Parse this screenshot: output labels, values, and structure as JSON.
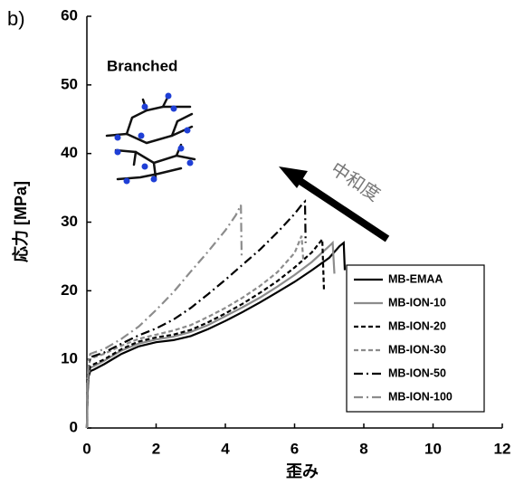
{
  "chart_data": {
    "type": "line",
    "panel_label": "b)",
    "annotation": "Branched",
    "arrow_label": "中和度",
    "xlabel": "歪み",
    "ylabel": "応力 [MPa]",
    "xlim": [
      0,
      12
    ],
    "xticks": [
      0,
      2,
      4,
      6,
      8,
      10,
      12
    ],
    "ylim": [
      0,
      60
    ],
    "yticks": [
      0,
      10,
      20,
      30,
      40,
      50,
      60
    ],
    "grid": false,
    "legend": "lower right",
    "series": [
      {
        "name": "MB-EMAA",
        "color": "#000000",
        "dash": "solid",
        "x": [
          0,
          0.02,
          0.05,
          0.1,
          0.2,
          0.5,
          1,
          1.5,
          2,
          2.5,
          3,
          3.5,
          4,
          4.5,
          5,
          5.5,
          6,
          6.5,
          7,
          7.3,
          7.42,
          7.45
        ],
        "values": [
          0,
          5,
          7.5,
          8.3,
          8.5,
          9.3,
          10.8,
          11.9,
          12.5,
          12.8,
          13.4,
          14.4,
          15.6,
          16.9,
          18.3,
          19.8,
          21.3,
          23,
          24.8,
          26.5,
          27,
          23
        ]
      },
      {
        "name": "MB-ION-10",
        "color": "#8c8c8c",
        "dash": "solid",
        "x": [
          0,
          0.02,
          0.05,
          0.1,
          0.2,
          0.5,
          1,
          1.5,
          2,
          2.5,
          3,
          3.5,
          4,
          4.5,
          5,
          5.5,
          6,
          6.5,
          7,
          7.1,
          7.15
        ],
        "values": [
          0,
          5.5,
          8,
          8.8,
          9,
          9.8,
          11.3,
          12.3,
          12.9,
          13.3,
          14,
          15,
          16.3,
          17.6,
          19,
          20.6,
          22.3,
          24.2,
          26.5,
          27,
          22.5
        ]
      },
      {
        "name": "MB-ION-20",
        "color": "#000000",
        "dash": "dashed",
        "x": [
          0,
          0.02,
          0.05,
          0.1,
          0.2,
          0.5,
          1,
          1.5,
          2,
          2.5,
          3,
          3.5,
          4,
          4.5,
          5,
          5.5,
          6,
          6.5,
          6.8,
          6.85
        ],
        "values": [
          0,
          5.5,
          8,
          9,
          9.3,
          10,
          11.5,
          12.6,
          13.2,
          13.6,
          14.3,
          15.4,
          16.7,
          18.1,
          19.7,
          21.4,
          23.4,
          25.6,
          27.5,
          20
        ]
      },
      {
        "name": "MB-ION-30",
        "color": "#8c8c8c",
        "dash": "dashed",
        "x": [
          0,
          0.02,
          0.05,
          0.1,
          0.2,
          0.5,
          1,
          1.5,
          2,
          2.5,
          3,
          3.5,
          4,
          4.5,
          5,
          5.5,
          6,
          6.2,
          6.25
        ],
        "values": [
          0,
          6,
          9,
          10,
          10.3,
          10.8,
          12,
          13,
          13.6,
          14.2,
          15,
          16.2,
          17.5,
          19,
          20.7,
          22.7,
          25.5,
          28,
          24.5
        ]
      },
      {
        "name": "MB-ION-50",
        "color": "#000000",
        "dash": "dashdot",
        "x": [
          0,
          0.02,
          0.05,
          0.1,
          0.2,
          0.5,
          1,
          1.5,
          2,
          2.5,
          3,
          3.5,
          4,
          4.5,
          5,
          5.5,
          6,
          6.2,
          6.3,
          6.32
        ],
        "values": [
          0,
          6.5,
          9.5,
          10.3,
          10.5,
          11,
          12.3,
          13.5,
          14.5,
          15.8,
          17.5,
          19.5,
          21.6,
          23.8,
          26,
          28.5,
          31.2,
          32.5,
          33,
          27
        ]
      },
      {
        "name": "MB-ION-100",
        "color": "#8c8c8c",
        "dash": "dashdot",
        "x": [
          0,
          0.02,
          0.05,
          0.1,
          0.2,
          0.5,
          1,
          1.5,
          2,
          2.5,
          3,
          3.5,
          4,
          4.3,
          4.45,
          4.47
        ],
        "values": [
          0,
          7,
          10,
          10.8,
          11,
          11.5,
          13,
          14.8,
          17.2,
          19.8,
          22.8,
          25.7,
          28.8,
          31,
          32.5,
          25
        ]
      }
    ]
  }
}
